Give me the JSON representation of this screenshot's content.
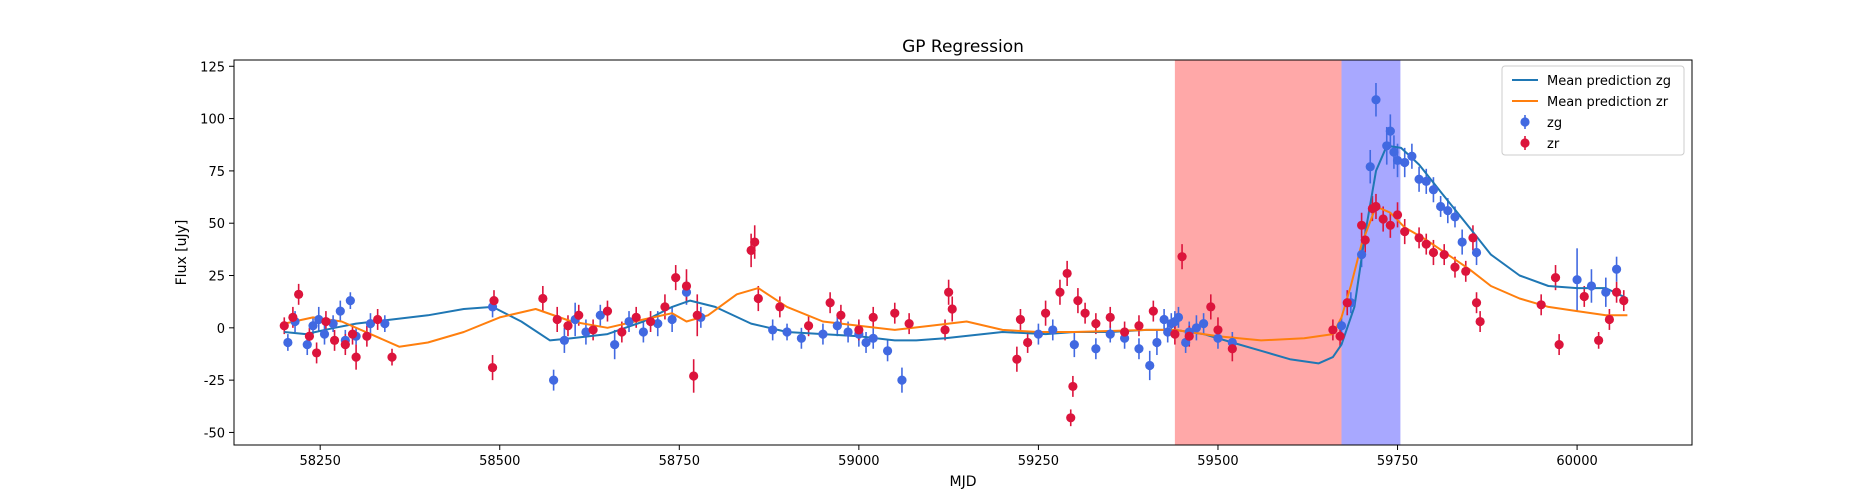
{
  "chart_data": {
    "type": "scatter",
    "title": "GP Regression",
    "xlabel": "MJD",
    "ylabel": "Flux [uJy]",
    "xlim": [
      58130,
      60160
    ],
    "ylim": [
      -56,
      128
    ],
    "xticks": [
      58250,
      58500,
      58750,
      59000,
      59250,
      59500,
      59750,
      60000
    ],
    "yticks": [
      -50,
      -25,
      0,
      25,
      50,
      75,
      100,
      125
    ],
    "grid": false,
    "legend_position": "top-right",
    "shaded_regions": [
      {
        "x0": 59440,
        "x1": 59672,
        "color": "#ff0000",
        "opacity": 0.34
      },
      {
        "x0": 59672,
        "x1": 59754,
        "color": "#0000ff",
        "opacity": 0.34
      }
    ],
    "lines": [
      {
        "name": "Mean prediction zg",
        "color": "#1f77b4",
        "x": [
          58200,
          58230,
          58270,
          58300,
          58350,
          58400,
          58450,
          58490,
          58530,
          58570,
          58600,
          58650,
          58700,
          58740,
          58765,
          58800,
          58850,
          58900,
          58950,
          59000,
          59050,
          59080,
          59120,
          59200,
          59260,
          59300,
          59350,
          59400,
          59440,
          59480,
          59520,
          59560,
          59600,
          59640,
          59660,
          59672,
          59690,
          59705,
          59720,
          59735,
          59755,
          59780,
          59810,
          59850,
          59880,
          59920,
          59960,
          60000,
          60040,
          60070
        ],
        "y": [
          -2,
          -3,
          0,
          2,
          4,
          6,
          9,
          10,
          3,
          -6,
          -5,
          -3,
          3,
          10,
          13,
          10,
          2,
          -2,
          -3,
          -4,
          -6,
          -6,
          -5,
          -2,
          -3,
          -2,
          -2,
          -1,
          -1,
          -3,
          -7,
          -11,
          -15,
          -17,
          -14,
          -8,
          10,
          45,
          75,
          87,
          86,
          78,
          65,
          48,
          35,
          25,
          20,
          19,
          19,
          14
        ],
        "values_note": ""
      },
      {
        "name": "Mean prediction zr",
        "color": "#ff7f0e",
        "x": [
          58200,
          58240,
          58280,
          58320,
          58360,
          58400,
          58450,
          58500,
          58550,
          58600,
          58650,
          58700,
          58740,
          58760,
          58790,
          58830,
          58860,
          58900,
          58950,
          59000,
          59050,
          59100,
          59150,
          59200,
          59250,
          59300,
          59400,
          59440,
          59500,
          59560,
          59620,
          59660,
          59672,
          59685,
          59700,
          59720,
          59740,
          59760,
          59790,
          59820,
          59850,
          59880,
          59920,
          59960,
          60000,
          60040,
          60070
        ],
        "y": [
          2,
          5,
          3,
          -3,
          -9,
          -7,
          -2,
          5,
          9,
          3,
          0,
          4,
          7,
          3,
          6,
          16,
          19,
          10,
          3,
          1,
          -1,
          1,
          3,
          -1,
          -2,
          -2,
          -1,
          -1,
          -4,
          -6,
          -5,
          -3,
          5,
          20,
          40,
          58,
          55,
          48,
          42,
          35,
          28,
          20,
          14,
          10,
          8,
          6,
          6
        ],
        "values_note": ""
      }
    ],
    "series": [
      {
        "name": "zg",
        "color": "#4169e1",
        "marker": "o",
        "points": [
          [
            58205,
            -7,
            4
          ],
          [
            58215,
            3,
            5
          ],
          [
            58232,
            -8,
            5
          ],
          [
            58240,
            1,
            4
          ],
          [
            58248,
            4,
            6
          ],
          [
            58256,
            -3,
            5
          ],
          [
            58268,
            2,
            4
          ],
          [
            58278,
            8,
            5
          ],
          [
            58285,
            -6,
            5
          ],
          [
            58292,
            13,
            4
          ],
          [
            58300,
            -4,
            4
          ],
          [
            58320,
            2,
            5
          ],
          [
            58340,
            2,
            4
          ],
          [
            58490,
            10,
            5
          ],
          [
            58575,
            -25,
            5
          ],
          [
            58590,
            -6,
            6
          ],
          [
            58605,
            4,
            8
          ],
          [
            58620,
            -2,
            6
          ],
          [
            58640,
            6,
            5
          ],
          [
            58660,
            -8,
            7
          ],
          [
            58680,
            3,
            5
          ],
          [
            58700,
            -2,
            5
          ],
          [
            58720,
            2,
            6
          ],
          [
            58740,
            4,
            6
          ],
          [
            58760,
            17,
            6
          ],
          [
            58780,
            5,
            5
          ],
          [
            58880,
            -1,
            5
          ],
          [
            58900,
            -2,
            4
          ],
          [
            58920,
            -5,
            5
          ],
          [
            58950,
            -3,
            5
          ],
          [
            58970,
            1,
            5
          ],
          [
            58985,
            -2,
            5
          ],
          [
            59000,
            -3,
            6
          ],
          [
            59010,
            -7,
            5
          ],
          [
            59020,
            -5,
            5
          ],
          [
            59040,
            -11,
            5
          ],
          [
            59060,
            -25,
            6
          ],
          [
            59250,
            -3,
            5
          ],
          [
            59270,
            -1,
            5
          ],
          [
            59300,
            -8,
            6
          ],
          [
            59330,
            -10,
            5
          ],
          [
            59350,
            -3,
            4
          ],
          [
            59370,
            -5,
            5
          ],
          [
            59390,
            -10,
            5
          ],
          [
            59405,
            -18,
            7
          ],
          [
            59415,
            -7,
            6
          ],
          [
            59425,
            4,
            5
          ],
          [
            59430,
            -2,
            5
          ],
          [
            59435,
            2,
            5
          ],
          [
            59440,
            3,
            5
          ],
          [
            59445,
            5,
            5
          ],
          [
            59455,
            -7,
            5
          ],
          [
            59460,
            -2,
            5
          ],
          [
            59470,
            0,
            6
          ],
          [
            59480,
            2,
            5
          ],
          [
            59500,
            -5,
            5
          ],
          [
            59520,
            -7,
            5
          ],
          [
            59672,
            1,
            4
          ],
          [
            59685,
            12,
            5
          ],
          [
            59700,
            35,
            6
          ],
          [
            59712,
            77,
            8
          ],
          [
            59720,
            109,
            8
          ],
          [
            59735,
            87,
            9
          ],
          [
            59740,
            94,
            8
          ],
          [
            59745,
            84,
            8
          ],
          [
            59750,
            80,
            8
          ],
          [
            59760,
            79,
            7
          ],
          [
            59770,
            82,
            6
          ],
          [
            59780,
            71,
            6
          ],
          [
            59790,
            70,
            6
          ],
          [
            59800,
            66,
            6
          ],
          [
            59810,
            58,
            5
          ],
          [
            59820,
            56,
            6
          ],
          [
            59830,
            53,
            5
          ],
          [
            59840,
            41,
            6
          ],
          [
            59860,
            36,
            6
          ],
          [
            60000,
            23,
            15
          ],
          [
            60020,
            20,
            8
          ],
          [
            60040,
            17,
            7
          ],
          [
            60055,
            28,
            6
          ]
        ]
      },
      {
        "name": "zr",
        "color": "#dc143c",
        "marker": "o",
        "points": [
          [
            58200,
            1,
            4
          ],
          [
            58212,
            5,
            5
          ],
          [
            58220,
            16,
            5
          ],
          [
            58235,
            -4,
            4
          ],
          [
            58245,
            -12,
            5
          ],
          [
            58258,
            3,
            5
          ],
          [
            58270,
            -6,
            5
          ],
          [
            58285,
            -8,
            5
          ],
          [
            58295,
            -3,
            5
          ],
          [
            58300,
            -14,
            6
          ],
          [
            58315,
            -4,
            5
          ],
          [
            58330,
            4,
            5
          ],
          [
            58350,
            -14,
            4
          ],
          [
            58490,
            -19,
            6
          ],
          [
            58492,
            13,
            5
          ],
          [
            58560,
            14,
            6
          ],
          [
            58580,
            4,
            6
          ],
          [
            58595,
            1,
            5
          ],
          [
            58610,
            6,
            5
          ],
          [
            58630,
            -1,
            5
          ],
          [
            58650,
            8,
            5
          ],
          [
            58670,
            -2,
            5
          ],
          [
            58690,
            5,
            5
          ],
          [
            58710,
            3,
            5
          ],
          [
            58730,
            10,
            6
          ],
          [
            58745,
            24,
            6
          ],
          [
            58760,
            20,
            8
          ],
          [
            58770,
            -23,
            8
          ],
          [
            58775,
            6,
            10
          ],
          [
            58850,
            37,
            8
          ],
          [
            58855,
            41,
            8
          ],
          [
            58860,
            14,
            6
          ],
          [
            58890,
            10,
            5
          ],
          [
            58930,
            1,
            5
          ],
          [
            58960,
            12,
            5
          ],
          [
            58975,
            6,
            5
          ],
          [
            59000,
            -1,
            5
          ],
          [
            59020,
            5,
            5
          ],
          [
            59050,
            7,
            5
          ],
          [
            59070,
            2,
            5
          ],
          [
            59120,
            -1,
            5
          ],
          [
            59125,
            17,
            6
          ],
          [
            59130,
            9,
            6
          ],
          [
            59220,
            -15,
            6
          ],
          [
            59225,
            4,
            5
          ],
          [
            59235,
            -7,
            5
          ],
          [
            59260,
            7,
            6
          ],
          [
            59280,
            17,
            6
          ],
          [
            59290,
            26,
            6
          ],
          [
            59295,
            -43,
            4
          ],
          [
            59298,
            -28,
            5
          ],
          [
            59305,
            13,
            6
          ],
          [
            59315,
            7,
            5
          ],
          [
            59330,
            2,
            5
          ],
          [
            59350,
            5,
            5
          ],
          [
            59370,
            -2,
            5
          ],
          [
            59390,
            1,
            5
          ],
          [
            59410,
            8,
            5
          ],
          [
            59440,
            -3,
            5
          ],
          [
            59450,
            34,
            6
          ],
          [
            59460,
            -4,
            5
          ],
          [
            59490,
            10,
            6
          ],
          [
            59500,
            -1,
            6
          ],
          [
            59520,
            -10,
            6
          ],
          [
            59660,
            -1,
            5
          ],
          [
            59670,
            -4,
            5
          ],
          [
            59680,
            12,
            6
          ],
          [
            59700,
            49,
            6
          ],
          [
            59705,
            42,
            6
          ],
          [
            59715,
            57,
            6
          ],
          [
            59720,
            58,
            6
          ],
          [
            59730,
            52,
            6
          ],
          [
            59740,
            49,
            6
          ],
          [
            59750,
            54,
            6
          ],
          [
            59760,
            46,
            6
          ],
          [
            59780,
            43,
            5
          ],
          [
            59790,
            40,
            5
          ],
          [
            59800,
            36,
            6
          ],
          [
            59815,
            35,
            5
          ],
          [
            59830,
            29,
            5
          ],
          [
            59845,
            27,
            5
          ],
          [
            59855,
            43,
            6
          ],
          [
            59860,
            12,
            5
          ],
          [
            59865,
            3,
            5
          ],
          [
            59950,
            11,
            5
          ],
          [
            59970,
            24,
            6
          ],
          [
            59975,
            -8,
            5
          ],
          [
            60010,
            15,
            5
          ],
          [
            60030,
            -6,
            4
          ],
          [
            60045,
            4,
            5
          ],
          [
            60055,
            17,
            5
          ],
          [
            60065,
            13,
            5
          ]
        ]
      }
    ]
  }
}
